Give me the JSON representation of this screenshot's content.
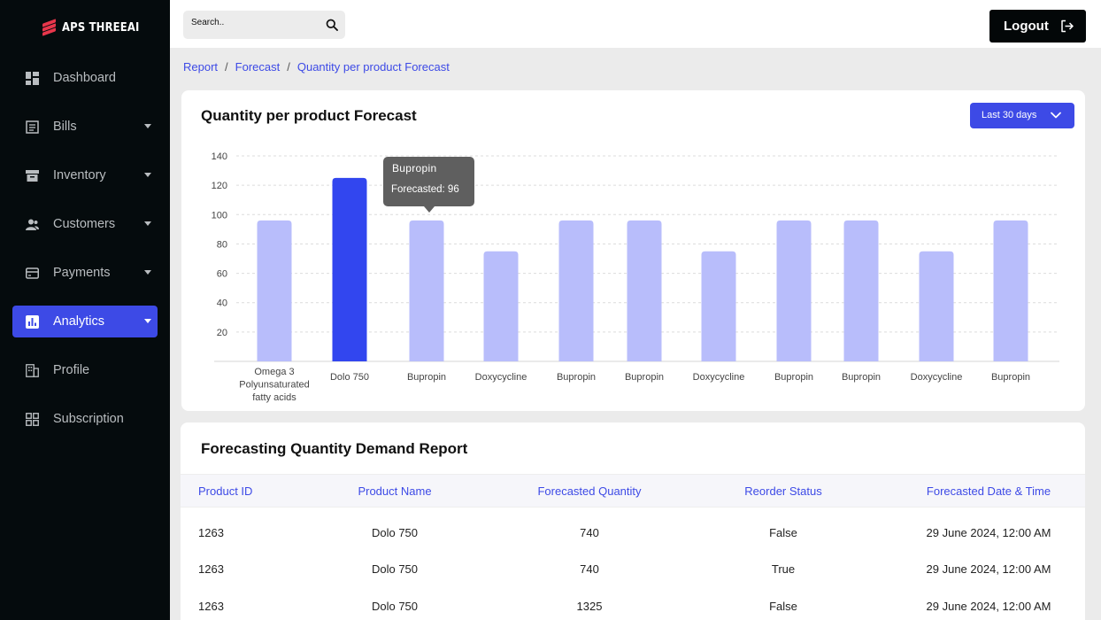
{
  "brand": {
    "name": "APS THREEAI",
    "color": "#e8364b"
  },
  "sidebar": {
    "items": [
      {
        "label": "Dashboard",
        "icon": "dashboard-icon",
        "caret": false,
        "active": false
      },
      {
        "label": "Bills",
        "icon": "bills-icon",
        "caret": true,
        "active": false
      },
      {
        "label": "Inventory",
        "icon": "inventory-icon",
        "caret": true,
        "active": false
      },
      {
        "label": "Customers",
        "icon": "customers-icon",
        "caret": true,
        "active": false
      },
      {
        "label": "Payments",
        "icon": "payments-icon",
        "caret": true,
        "active": false
      },
      {
        "label": "Analytics",
        "icon": "analytics-icon",
        "caret": true,
        "active": true
      },
      {
        "label": "Profile",
        "icon": "profile-icon",
        "caret": false,
        "active": false
      },
      {
        "label": "Subscription",
        "icon": "subscription-icon",
        "caret": false,
        "active": false
      }
    ]
  },
  "header": {
    "search_placeholder": "Search..",
    "logout_label": "Logout"
  },
  "breadcrumb": [
    "Report",
    "Forecast",
    "Quantity per product Forecast"
  ],
  "chart_card": {
    "title": "Quantity per product Forecast",
    "range_label": "Last 30 days",
    "tooltip": {
      "name": "Bupropin",
      "value_text": "Forecasted:  96"
    }
  },
  "chart_data": {
    "type": "bar",
    "categories": [
      "Omega 3 Polyunsaturated fatty acids",
      "Dolo 750",
      "Bupropin",
      "Doxycycline",
      "Bupropin",
      "Bupropin",
      "Doxycycline",
      "Bupropin",
      "Bupropin",
      "Doxycycline",
      "Bupropin"
    ],
    "category_lines": [
      [
        "Omega 3",
        "Polyunsaturated",
        "fatty acids"
      ],
      [
        "Dolo 750"
      ],
      [
        "Bupropin"
      ],
      [
        "Doxycycline"
      ],
      [
        "Bupropin"
      ],
      [
        "Bupropin"
      ],
      [
        "Doxycycline"
      ],
      [
        "Bupropin"
      ],
      [
        "Bupropin"
      ],
      [
        "Doxycycline"
      ],
      [
        "Bupropin"
      ]
    ],
    "values": [
      96,
      125,
      96,
      75,
      96,
      96,
      75,
      96,
      96,
      75,
      96
    ],
    "highlight_index": 1,
    "ylim": [
      0,
      140
    ],
    "yticks": [
      20,
      40,
      60,
      80,
      100,
      120,
      140
    ],
    "grid": true,
    "colors": {
      "bar": "#b8bdfb",
      "highlight": "#3246ef",
      "grid": "#dcdcdc"
    }
  },
  "table": {
    "title": "Forecasting Quantity Demand Report",
    "columns": [
      "Product ID",
      "Product Name",
      "Forecasted Quantity",
      "Reorder Status",
      "Forecasted Date & Time"
    ],
    "rows": [
      [
        "1263",
        "Dolo 750",
        "740",
        "False",
        "29 June 2024, 12:00 AM"
      ],
      [
        "1263",
        "Dolo 750",
        "740",
        "True",
        "29 June 2024, 12:00 AM"
      ],
      [
        "1263",
        "Dolo 750",
        "1325",
        "False",
        "29 June 2024, 12:00 AM"
      ]
    ]
  }
}
